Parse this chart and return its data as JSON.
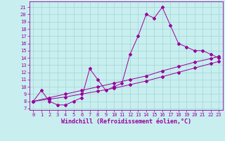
{
  "line1_x": [
    0,
    1,
    2,
    3,
    4,
    5,
    6,
    7,
    8,
    9,
    10,
    11,
    12,
    13,
    14,
    15,
    16,
    17,
    18,
    19,
    20,
    21,
    22,
    23
  ],
  "line1_y": [
    8.0,
    9.5,
    8.0,
    7.5,
    7.5,
    8.0,
    8.5,
    12.5,
    11.0,
    9.5,
    10.0,
    10.5,
    14.5,
    17.0,
    20.0,
    19.5,
    21.0,
    18.5,
    16.0,
    15.5,
    15.0,
    15.0,
    14.5,
    14.0
  ],
  "line2_x": [
    0,
    2,
    4,
    6,
    8,
    10,
    12,
    14,
    16,
    18,
    20,
    22,
    23
  ],
  "line2_y": [
    8.0,
    8.3,
    8.6,
    9.0,
    9.4,
    9.8,
    10.3,
    10.8,
    11.4,
    12.0,
    12.6,
    13.2,
    13.5
  ],
  "line3_x": [
    0,
    2,
    4,
    6,
    8,
    10,
    12,
    14,
    16,
    18,
    20,
    22,
    23
  ],
  "line3_y": [
    8.0,
    8.5,
    9.0,
    9.5,
    10.0,
    10.5,
    11.0,
    11.5,
    12.2,
    12.8,
    13.4,
    13.9,
    14.2
  ],
  "line_color": "#990099",
  "marker": "D",
  "marker_size": 2,
  "bg_color": "#c8eef0",
  "grid_color": "#a0d8d0",
  "xlabel": "Windchill (Refroidissement éolien,°C)",
  "ylabel_ticks": [
    7,
    8,
    9,
    10,
    11,
    12,
    13,
    14,
    15,
    16,
    17,
    18,
    19,
    20,
    21
  ],
  "xlabel_ticks": [
    0,
    1,
    2,
    3,
    4,
    5,
    6,
    7,
    8,
    9,
    10,
    11,
    12,
    13,
    14,
    15,
    16,
    17,
    18,
    19,
    20,
    21,
    22,
    23
  ],
  "ylim": [
    6.8,
    21.8
  ],
  "xlim": [
    -0.5,
    23.5
  ],
  "tick_fontsize": 5.0,
  "label_fontsize": 6.0
}
